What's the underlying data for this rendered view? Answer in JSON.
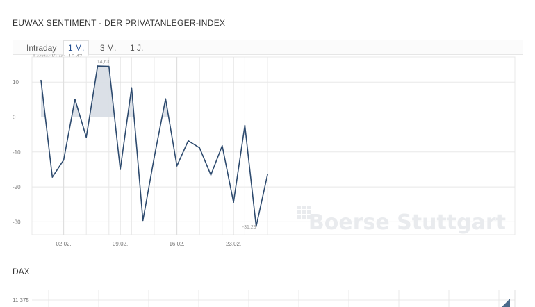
{
  "page": {
    "title": "EUWAX SENTIMENT - DER PRIVATANLEGER-INDEX",
    "tabs": [
      {
        "label": "Intraday",
        "active": false
      },
      {
        "label": "1 M.",
        "active": true
      },
      {
        "label": "3 M.",
        "active": false
      },
      {
        "label": "1 J.",
        "active": false
      }
    ],
    "last_price": "Letzter Kurs: -16,47",
    "watermark": "Boerse Stuttgart",
    "section2_title": "DAX",
    "dax_tick": "11.375"
  },
  "colors": {
    "line": "#2d4a6e",
    "fill": "#d9dee6",
    "grid": "#e8e8e8",
    "active_tab": "#1e4b8f"
  },
  "chart_data": {
    "type": "line",
    "title": "EUWAX SENTIMENT - DER PRIVATANLEGER-INDEX",
    "xlabel": "",
    "ylabel": "",
    "ylim": [
      -35,
      12
    ],
    "yticks": [
      10,
      0,
      -10,
      -20,
      -30
    ],
    "xtick_labels": [
      "02.02.",
      "09.02.",
      "16.02.",
      "23.02."
    ],
    "grid": true,
    "series": [
      {
        "values": [
          10.5,
          -17.2,
          -12.3,
          5.1,
          -5.8,
          14.6,
          14.5,
          -15.0,
          8.4,
          -29.6,
          -11.5,
          5.2,
          -14.0,
          -6.8,
          -8.8,
          -16.6,
          -8.2,
          -24.4,
          -2.4,
          -31.3,
          -16.47
        ]
      }
    ],
    "annotations": [
      {
        "label": "14,63",
        "point": "max"
      },
      {
        "label": "-31,29",
        "point": "min"
      }
    ]
  }
}
